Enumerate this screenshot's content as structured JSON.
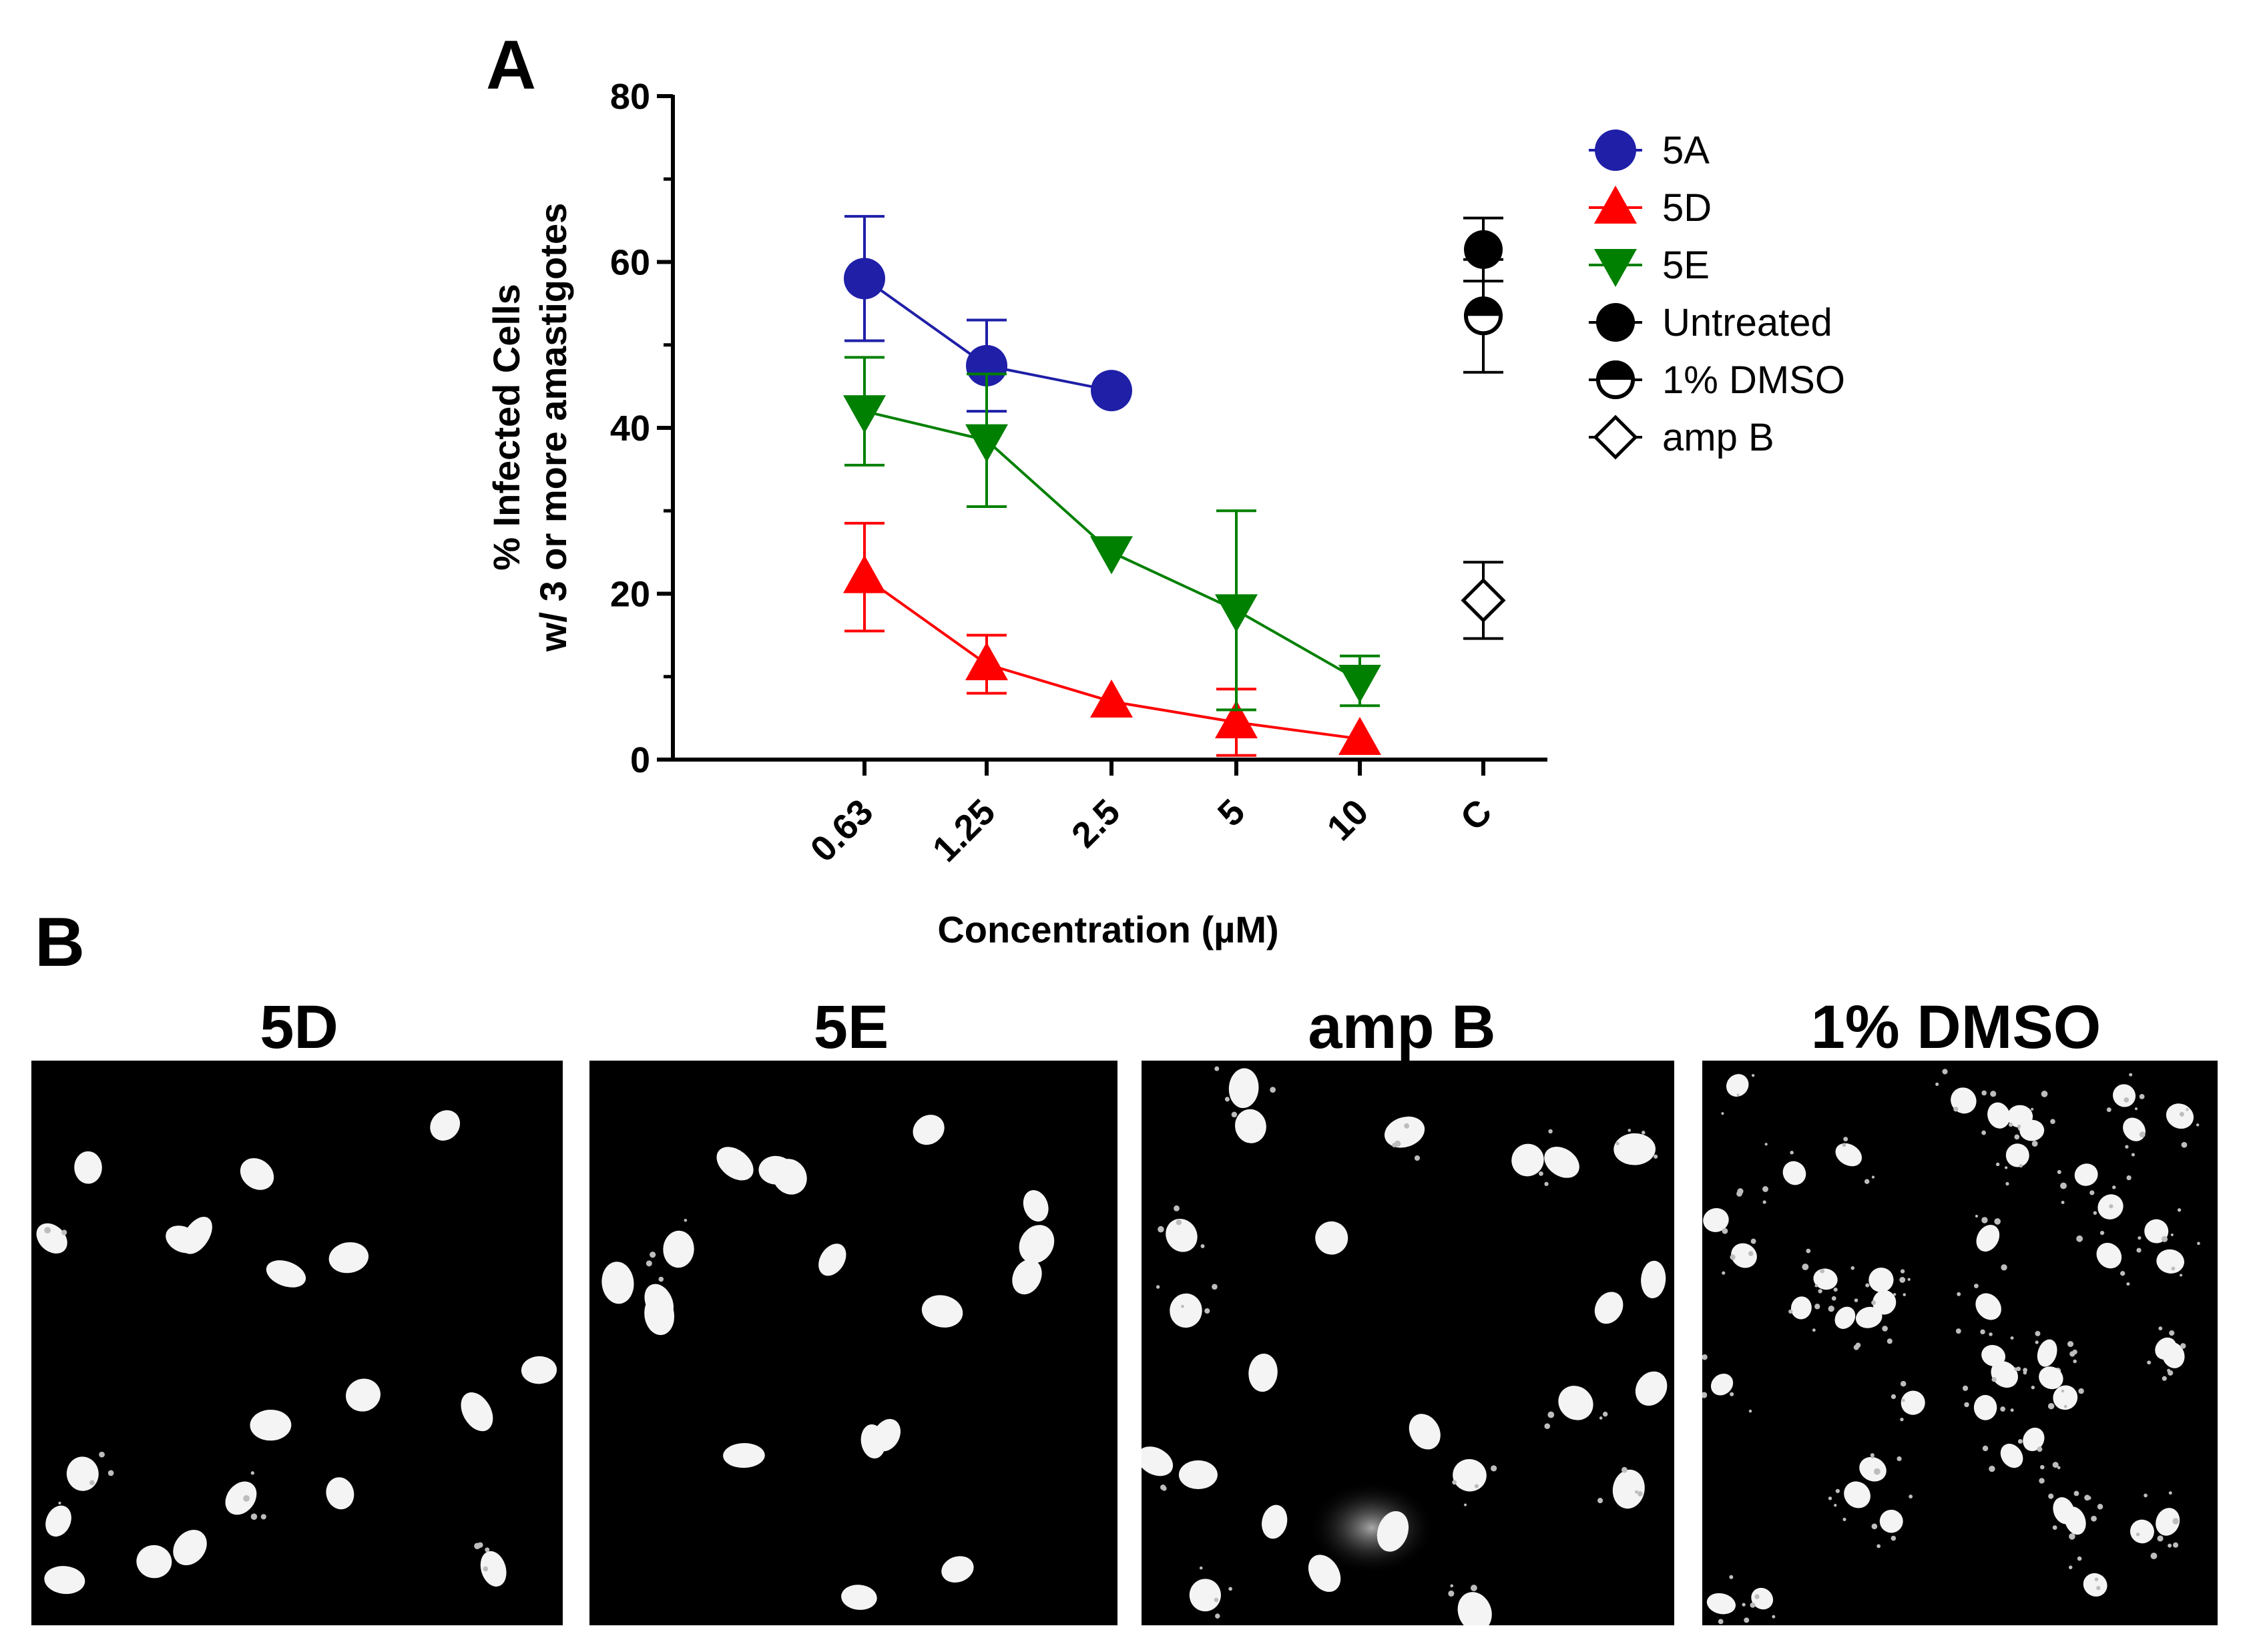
{
  "panel_a_label": "A",
  "panel_b_label": "B",
  "chart_data": {
    "type": "line",
    "title": "",
    "xlabel": "Concentration (µM)",
    "ylabel_line1": "% Infected Cells",
    "ylabel_line2": "w/ 3 or more amastigotes",
    "ylim": [
      0,
      80
    ],
    "yticks": [
      0,
      20,
      40,
      60,
      80
    ],
    "categories": [
      "0.63",
      "1.25",
      "2.5",
      "5",
      "10",
      "C"
    ],
    "series": [
      {
        "name": "5A",
        "color": "#1f1fa8",
        "marker": "circle",
        "values": [
          58,
          47.5,
          44.5,
          null,
          null,
          null
        ],
        "errors": [
          7.5,
          5.5,
          null,
          null,
          null,
          null
        ]
      },
      {
        "name": "5D",
        "color": "#ff0000",
        "marker": "triangle-up",
        "values": [
          22,
          11.5,
          7,
          4.5,
          2.5,
          null
        ],
        "errors": [
          6.5,
          3.5,
          null,
          4,
          null,
          null
        ]
      },
      {
        "name": "5E",
        "color": "#008000",
        "marker": "triangle-down",
        "values": [
          42,
          38.5,
          25,
          18,
          9.5,
          null
        ],
        "errors": [
          6.5,
          8,
          null,
          12,
          3,
          null
        ]
      }
    ],
    "controls": [
      {
        "name": "Untreated",
        "marker": "circle-filled",
        "color": "#000000",
        "category": "C",
        "value": 61.5,
        "error": 3.8
      },
      {
        "name": "1% DMSO",
        "marker": "circle-half",
        "color": "#000000",
        "category": "C",
        "value": 53.5,
        "error": 6.8
      },
      {
        "name": "amp B",
        "marker": "diamond-open",
        "color": "#000000",
        "category": "C",
        "value": 19.2,
        "error": 4.6
      }
    ],
    "legend": [
      "5A",
      "5D",
      "5E",
      "Untreated",
      "1% DMSO",
      "amp B"
    ],
    "legend_position": "right"
  },
  "micrographs": [
    {
      "title": "5D"
    },
    {
      "title": "5E"
    },
    {
      "title": "amp B"
    },
    {
      "title": "1% DMSO"
    }
  ]
}
